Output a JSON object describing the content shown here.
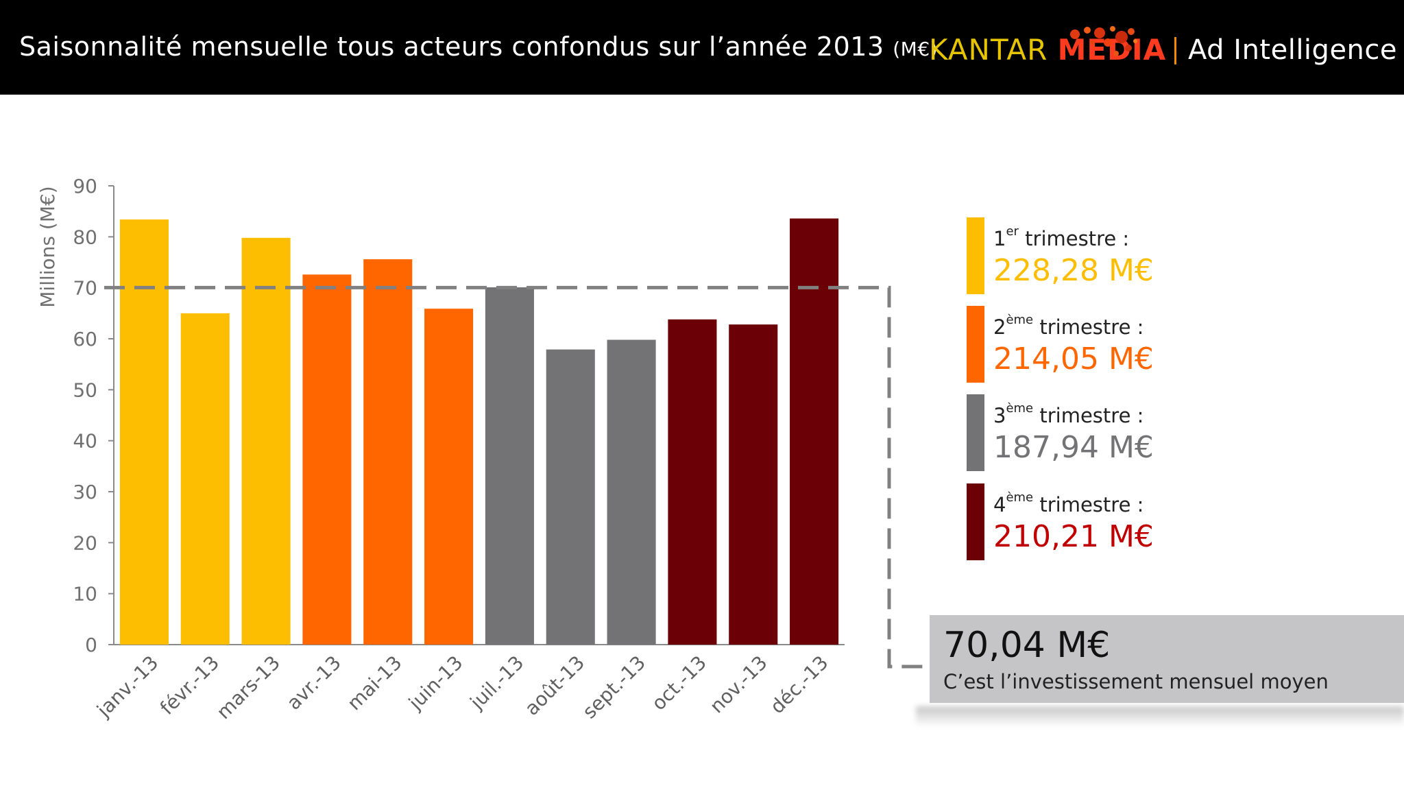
{
  "header": {
    "title": "Saisonnalité mensuelle tous acteurs confondus sur l’année 2013",
    "title_unit": "(M€)",
    "brand_kantar": "KANTAR",
    "brand_media": "MEDIA",
    "brand_product": "Ad Intelligence"
  },
  "chart_data": {
    "type": "bar",
    "ylabel": "Millions (M€)",
    "xlabel": "",
    "ylim": [
      0,
      90
    ],
    "yticks": [
      0,
      10,
      20,
      30,
      40,
      50,
      60,
      70,
      80,
      90
    ],
    "categories": [
      "janv.-13",
      "févr.-13",
      "mars-13",
      "avr.-13",
      "mai-13",
      "juin-13",
      "juil.-13",
      "août-13",
      "sept.-13",
      "oct.-13",
      "nov.-13",
      "déc.-13"
    ],
    "values": [
      83.4,
      65.0,
      79.8,
      72.6,
      75.6,
      65.9,
      70.1,
      57.9,
      59.8,
      63.8,
      62.8,
      83.6
    ],
    "quarter_of_month": [
      1,
      1,
      1,
      2,
      2,
      2,
      3,
      3,
      3,
      4,
      4,
      4
    ],
    "average_line": 70.04,
    "colors": {
      "q1": "#fdbd00",
      "q2": "#ff6600",
      "q3": "#737274",
      "q4": "#6b0006",
      "axis": "#8a8a8a",
      "average_line": "#808080"
    }
  },
  "legend": [
    {
      "num": "1",
      "sup": "er",
      "label": " trimestre :",
      "value": "228,28 M€",
      "bar_color": "#fdbd00",
      "value_color": "#fdbd00"
    },
    {
      "num": "2",
      "sup": "ème",
      "label": " trimestre :",
      "value": "214,05 M€",
      "bar_color": "#ff6600",
      "value_color": "#ff6600"
    },
    {
      "num": "3",
      "sup": "ème",
      "label": " trimestre :",
      "value": "187,94 M€",
      "bar_color": "#737274",
      "value_color": "#737274"
    },
    {
      "num": "4",
      "sup": "ème",
      "label": " trimestre :",
      "value": "210,21 M€",
      "bar_color": "#6b0006",
      "value_color": "#c00000"
    }
  ],
  "average": {
    "value": "70,04 M€",
    "caption": "C’est l’investissement mensuel moyen"
  }
}
